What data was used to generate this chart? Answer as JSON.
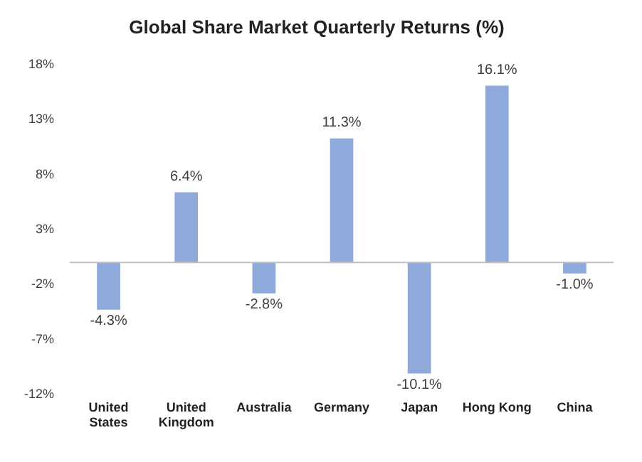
{
  "chart_data": {
    "type": "bar",
    "title": "Global Share Market Quarterly Returns (%)",
    "categories": [
      "United States",
      "United Kingdom",
      "Australia",
      "Germany",
      "Japan",
      "Hong Kong",
      "China"
    ],
    "values": [
      -4.3,
      6.4,
      -2.8,
      11.3,
      -10.1,
      16.1,
      -1.0
    ],
    "value_labels": [
      "-4.3%",
      "6.4%",
      "-2.8%",
      "11.3%",
      "-10.1%",
      "16.1%",
      "-1.0%"
    ],
    "color": "#8eaadb",
    "ylim": [
      -12,
      18
    ],
    "yticks": [
      {
        "value": -12,
        "label": "-12%"
      },
      {
        "value": -7,
        "label": "-7%"
      },
      {
        "value": -2,
        "label": "-2%"
      },
      {
        "value": 3,
        "label": "3%"
      },
      {
        "value": 8,
        "label": "8%"
      },
      {
        "value": 13,
        "label": "13%"
      },
      {
        "value": 18,
        "label": "18%"
      }
    ],
    "grid": false,
    "legend": false
  }
}
